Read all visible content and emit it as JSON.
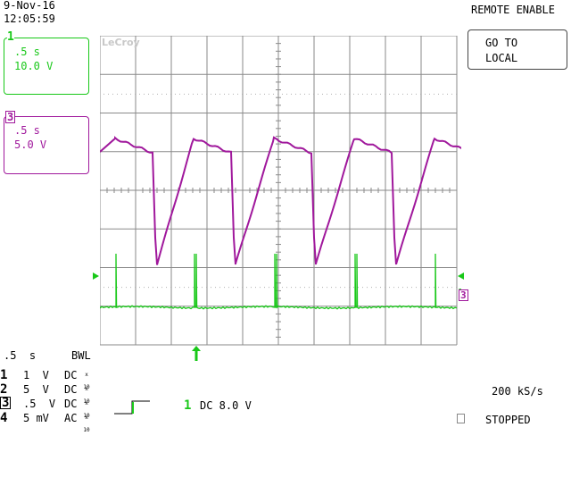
{
  "header": {
    "date": "9-Nov-16",
    "time": "12:05:59",
    "remote": "REMOTE ENABLE"
  },
  "menu": {
    "go_to_local_line1": "GO TO",
    "go_to_local_line2": "LOCAL"
  },
  "trace1_box": {
    "channel": "1",
    "timebase": ".5 s",
    "volts": "10.0 V"
  },
  "trace3_box": {
    "channel": "3",
    "timebase": ".5 s",
    "volts": "5.0 V"
  },
  "logo": "LeCroy",
  "markers": {
    "trace3_right": "3"
  },
  "bottom": {
    "timebase": ".5  s",
    "bwl": "BWL",
    "channels": [
      {
        "num": "1",
        "value": "1  V",
        "coupling": "DC"
      },
      {
        "num": "2",
        "value": "5  V",
        "coupling": "DC"
      },
      {
        "num": "3",
        "value": ".5  V",
        "coupling": "DC"
      },
      {
        "num": "4",
        "value": "5 mV",
        "coupling": "AC"
      }
    ],
    "probe_x": "x",
    "probe_10": "10",
    "trigger_channel": "1",
    "trigger_setting": "DC 8.0 V",
    "sample_rate": "200 kS/s",
    "status": "STOPPED"
  },
  "colors": {
    "ch1": "#18c818",
    "ch3": "#a0189c",
    "grid": "#8a8a8a"
  }
}
